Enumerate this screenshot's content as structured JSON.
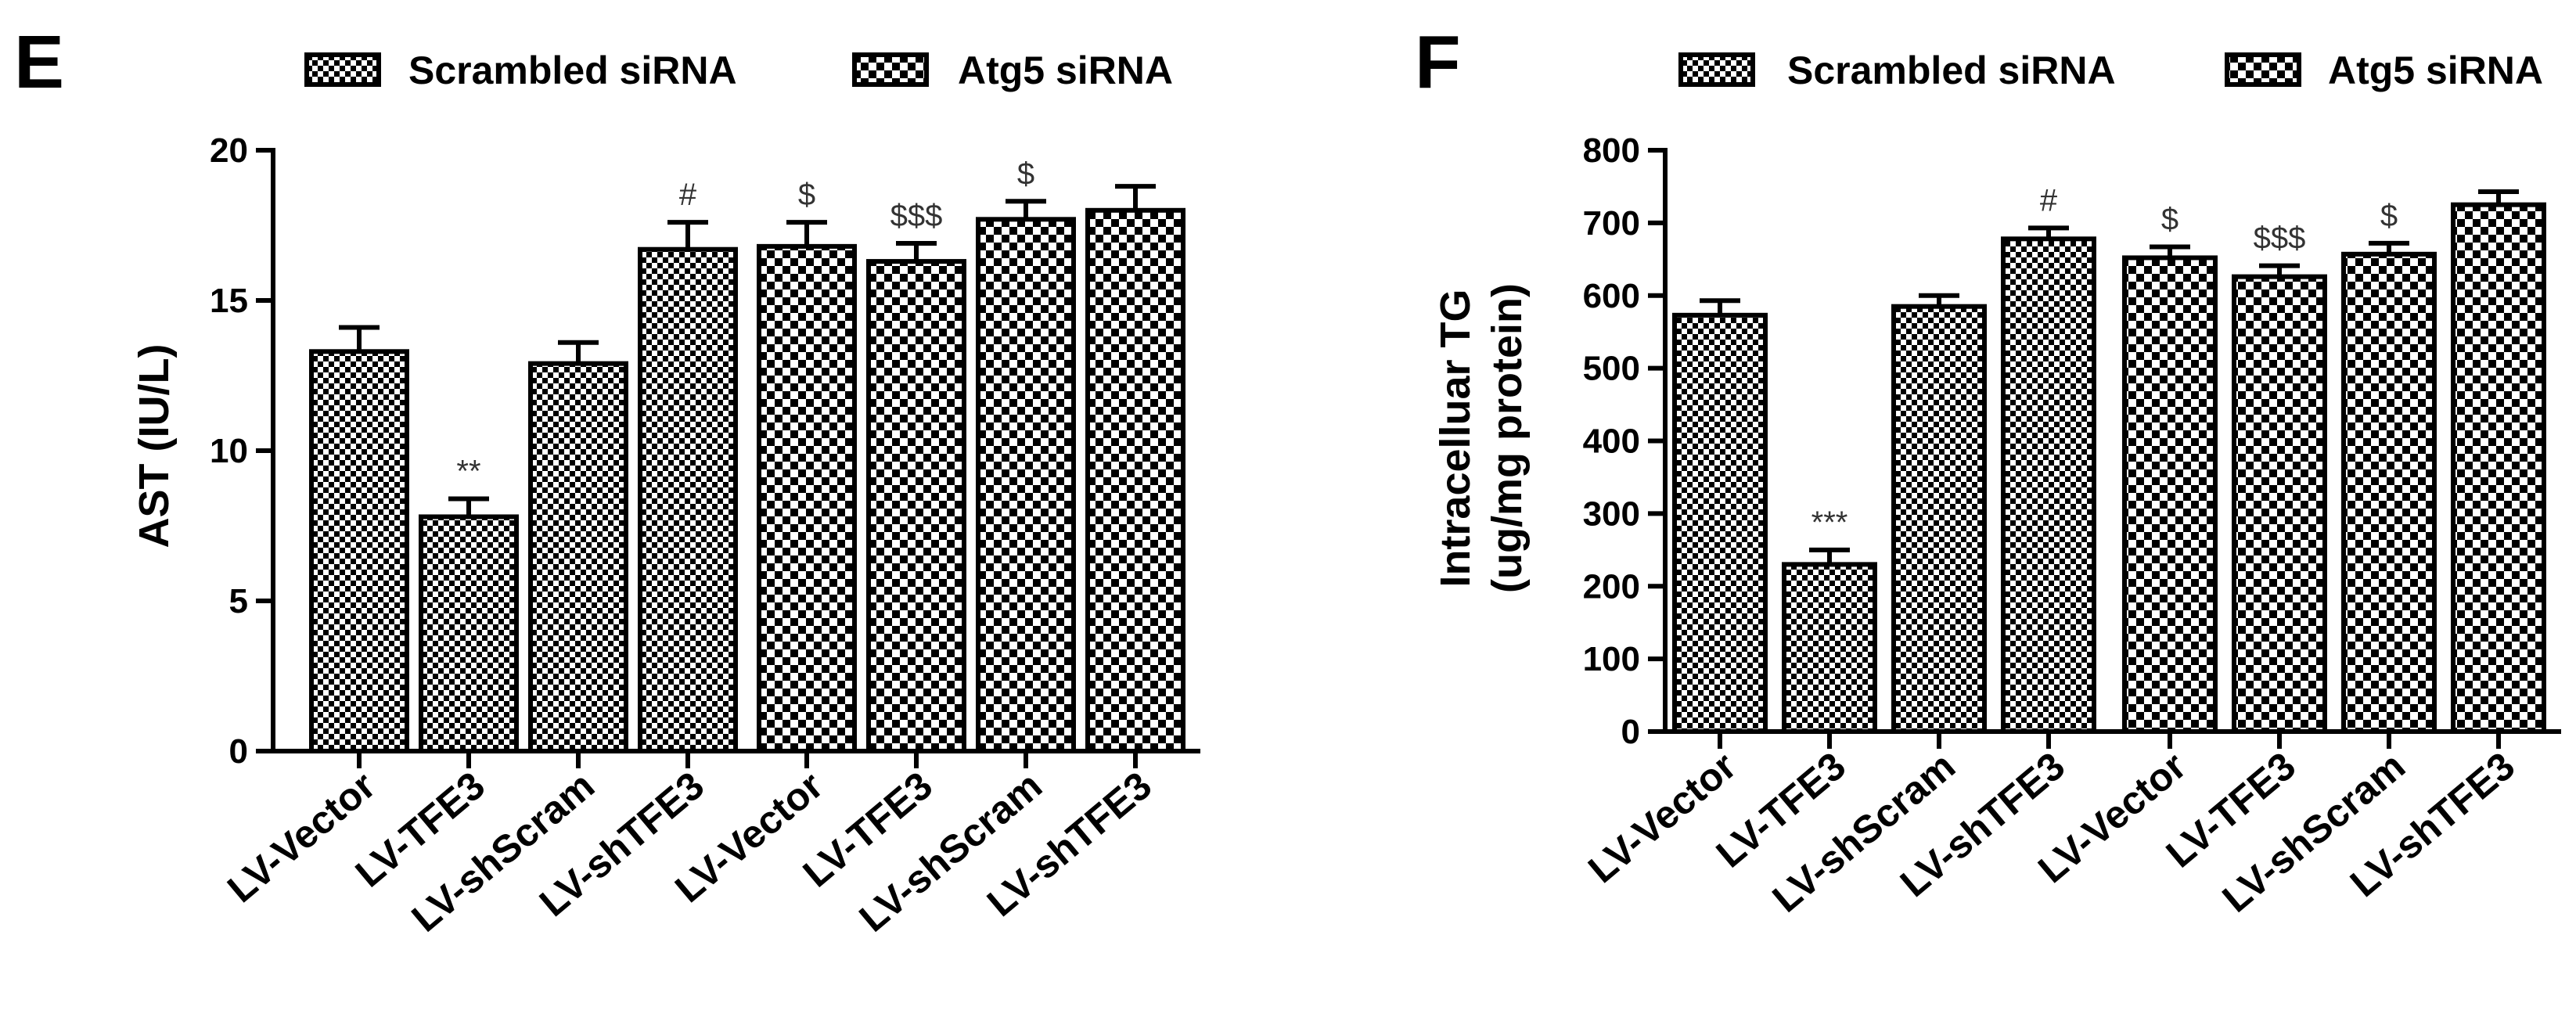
{
  "figure": {
    "colors": {
      "ink": "#000000",
      "background": "#ffffff",
      "annotation": "#333333"
    },
    "legend": {
      "labels": [
        "Scrambled siRNA",
        "Atg5 siRNA"
      ],
      "patterns": [
        "fine-checker",
        "coarse-checker"
      ]
    }
  },
  "chart_data": [
    {
      "type": "bar",
      "panel": "E",
      "title": "",
      "xlabel": "",
      "ylabel": "AST (IU/L)",
      "ylim": [
        0,
        20
      ],
      "yticks": [
        0,
        5,
        10,
        15,
        20
      ],
      "categories": [
        "LV-Vector",
        "LV-TFE3",
        "LV-shScram",
        "LV-shTFE3"
      ],
      "legend_position": "top",
      "series": [
        {
          "name": "Scrambled siRNA",
          "values": [
            13.3,
            7.8,
            12.9,
            16.7
          ],
          "errors": [
            0.8,
            0.6,
            0.7,
            0.9
          ],
          "annotations": [
            "",
            "**",
            "",
            "#"
          ]
        },
        {
          "name": "Atg5 siRNA",
          "values": [
            16.8,
            16.3,
            17.7,
            18.0
          ],
          "errors": [
            0.8,
            0.6,
            0.6,
            0.8
          ],
          "annotations": [
            "$",
            "$$$",
            "$",
            ""
          ]
        }
      ]
    },
    {
      "type": "bar",
      "panel": "F",
      "title": "",
      "xlabel": "",
      "ylabel": [
        "Intracelluar TG",
        "(ug/mg protein)"
      ],
      "ylim": [
        0,
        800
      ],
      "yticks": [
        0,
        100,
        200,
        300,
        400,
        500,
        600,
        700,
        800
      ],
      "categories": [
        "LV-Vector",
        "LV-TFE3",
        "LV-shScram",
        "LV-shTFE3"
      ],
      "legend_position": "top",
      "series": [
        {
          "name": "Scrambled siRNA",
          "values": [
            573,
            230,
            585,
            678
          ],
          "errors": [
            20,
            20,
            15,
            15
          ],
          "annotations": [
            "",
            "***",
            "",
            "#"
          ]
        },
        {
          "name": "Atg5 siRNA",
          "values": [
            652,
            626,
            657,
            725
          ],
          "errors": [
            15,
            15,
            15,
            18
          ],
          "annotations": [
            "$",
            "$$$",
            "$",
            ""
          ]
        }
      ]
    }
  ]
}
